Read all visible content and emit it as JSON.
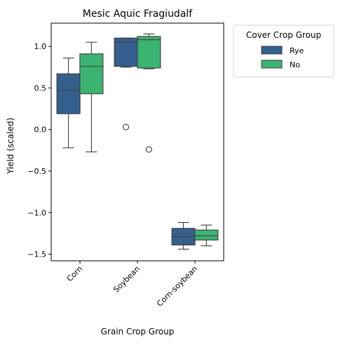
{
  "chart_data": {
    "type": "box",
    "title": "Mesic Aquic Fragiudalf",
    "xlabel": "Grain Crop Group",
    "ylabel": "Yield (scaled)",
    "categories": [
      "Corn",
      "Soybean",
      "Corn-soybean"
    ],
    "yticks": [
      "1.0",
      "0.5",
      "0.0",
      "−0.5",
      "−1.0",
      "−1.5"
    ],
    "ytick_values": [
      1.0,
      0.5,
      0.0,
      -0.5,
      -1.0,
      -1.5
    ],
    "ylim": [
      -1.58,
      1.28
    ],
    "grid": false,
    "legend": {
      "title": "Cover Crop Group",
      "placement": "outside-right",
      "entries": [
        "Rye",
        "No"
      ]
    },
    "series": [
      {
        "name": "Rye",
        "color": "#355f8d",
        "boxes": [
          {
            "min": -0.22,
            "q1": 0.19,
            "median": 0.47,
            "q3": 0.67,
            "max": 0.86,
            "outliers": []
          },
          {
            "min": 0.75,
            "q1": 0.76,
            "median": 1.05,
            "q3": 1.1,
            "max": 1.1,
            "outliers": [
              0.03
            ]
          },
          {
            "min": -1.44,
            "q1": -1.39,
            "median": -1.29,
            "q3": -1.19,
            "max": -1.12,
            "outliers": []
          }
        ]
      },
      {
        "name": "No",
        "color": "#3cb371",
        "boxes": [
          {
            "min": -0.27,
            "q1": 0.43,
            "median": 0.76,
            "q3": 0.91,
            "max": 1.05,
            "outliers": []
          },
          {
            "min": 0.73,
            "q1": 0.74,
            "median": 1.08,
            "q3": 1.12,
            "max": 1.15,
            "outliers": [
              -0.24
            ]
          },
          {
            "min": -1.4,
            "q1": -1.33,
            "median": -1.28,
            "q3": -1.21,
            "max": -1.15,
            "outliers": []
          }
        ]
      }
    ]
  }
}
